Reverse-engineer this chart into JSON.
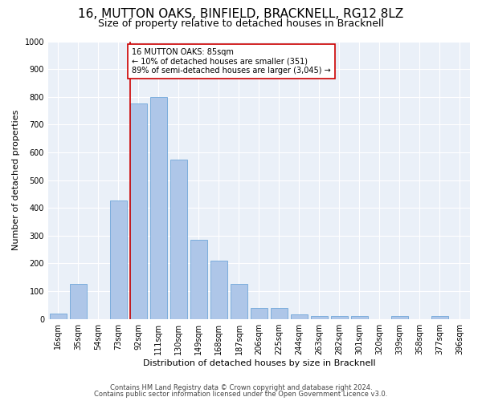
{
  "title": "16, MUTTON OAKS, BINFIELD, BRACKNELL, RG12 8LZ",
  "subtitle": "Size of property relative to detached houses in Bracknell",
  "xlabel": "Distribution of detached houses by size in Bracknell",
  "ylabel": "Number of detached properties",
  "categories": [
    "16sqm",
    "35sqm",
    "54sqm",
    "73sqm",
    "92sqm",
    "111sqm",
    "130sqm",
    "149sqm",
    "168sqm",
    "187sqm",
    "206sqm",
    "225sqm",
    "244sqm",
    "263sqm",
    "282sqm",
    "301sqm",
    "320sqm",
    "339sqm",
    "358sqm",
    "377sqm",
    "396sqm"
  ],
  "values": [
    20,
    125,
    0,
    425,
    775,
    800,
    575,
    285,
    210,
    125,
    40,
    40,
    15,
    10,
    10,
    10,
    0,
    10,
    0,
    10,
    0
  ],
  "bar_color": "#aec6e8",
  "bar_edge_color": "#5b9bd5",
  "marker_color": "#cc0000",
  "annotation_text": "16 MUTTON OAKS: 85sqm\n← 10% of detached houses are smaller (351)\n89% of semi-detached houses are larger (3,045) →",
  "annotation_box_color": "#ffffff",
  "annotation_box_edge_color": "#cc0000",
  "ylim": [
    0,
    1000
  ],
  "yticks": [
    0,
    100,
    200,
    300,
    400,
    500,
    600,
    700,
    800,
    900,
    1000
  ],
  "background_color": "#eaf0f8",
  "footer_line1": "Contains HM Land Registry data © Crown copyright and database right 2024.",
  "footer_line2": "Contains public sector information licensed under the Open Government Licence v3.0.",
  "title_fontsize": 11,
  "subtitle_fontsize": 9,
  "axis_label_fontsize": 8,
  "tick_fontsize": 7,
  "annotation_fontsize": 7,
  "footer_fontsize": 6
}
